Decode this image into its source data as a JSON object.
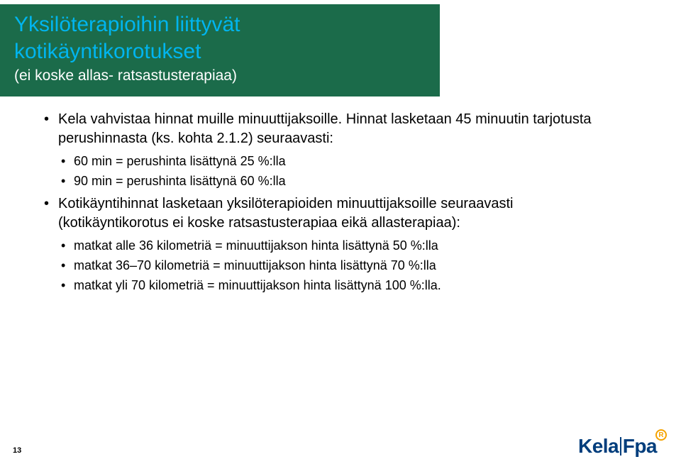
{
  "header": {
    "title": "Yksilöterapioihin liittyvät kotikäyntikorotukset",
    "subtitle": "(ei koske allas- ratsastusterapiaa)",
    "bg_color": "#1b6b4a",
    "title_color": "#00b5ef",
    "subtitle_color": "#ffffff"
  },
  "content": {
    "items": [
      {
        "text": "Kela vahvistaa hinnat muille minuuttijaksoille. Hinnat lasketaan 45 minuutin tarjotusta perushinnasta (ks. kohta 2.1.2) seuraavasti:",
        "sub": [
          "60 min = perushinta lisättynä 25 %:lla",
          "90 min = perushinta lisättynä 60 %:lla"
        ]
      },
      {
        "text": " Kotikäyntihinnat lasketaan yksilöterapioiden minuuttijaksoille seuraavasti (kotikäyntikorotus ei koske ratsastusterapiaa eikä allasterapiaa):",
        "sub": [
          "matkat alle 36 kilometriä = minuuttijakson hinta lisättynä 50 %:lla",
          "matkat 36–70 kilometriä = minuuttijakson hinta lisättynä 70 %:lla",
          "matkat yli 70 kilometriä = minuuttijakson hinta lisättynä 100 %:lla."
        ]
      }
    ]
  },
  "footer": {
    "page_number": "13",
    "logo_left": "Kela",
    "logo_right": "Fpa",
    "logo_badge": "R",
    "logo_color": "#003d7c",
    "badge_color": "#f5a300"
  }
}
